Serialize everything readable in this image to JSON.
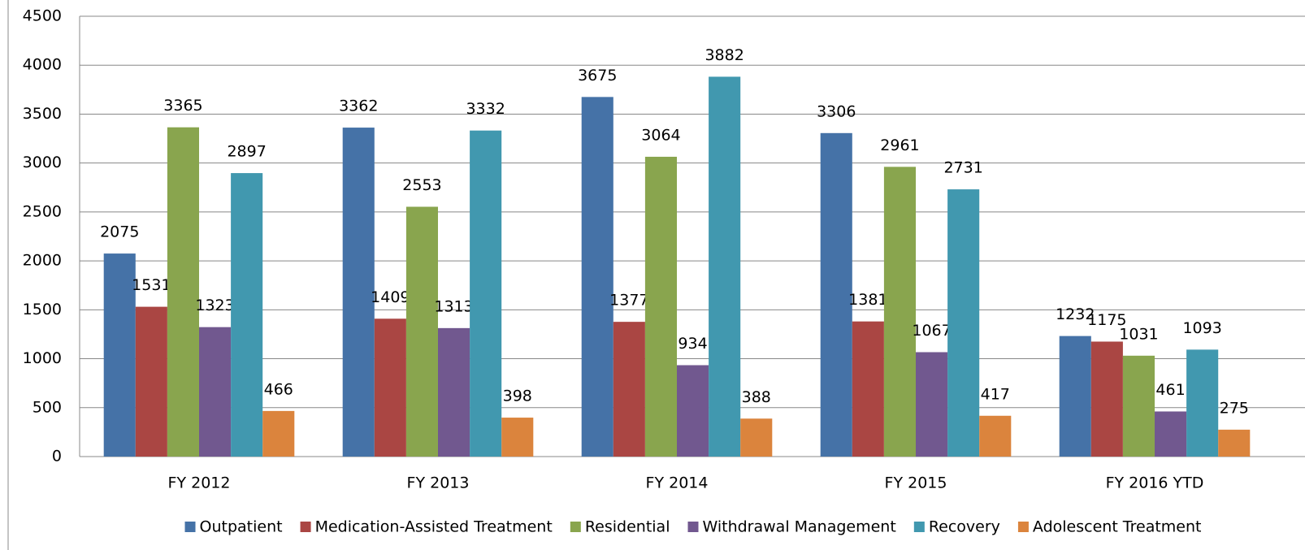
{
  "chart_data": {
    "type": "bar",
    "categories": [
      "FY 2012",
      "FY 2013",
      "FY 2014",
      "FY 2015",
      "FY 2016 YTD"
    ],
    "series": [
      {
        "name": "Outpatient",
        "color": "#4572a7",
        "values": [
          2075,
          3362,
          3675,
          3306,
          1232
        ]
      },
      {
        "name": "Medication-Assisted Treatment",
        "color": "#aa4643",
        "values": [
          1531,
          1409,
          1377,
          1381,
          1175
        ]
      },
      {
        "name": "Residential",
        "color": "#89a54e",
        "values": [
          3365,
          2553,
          3064,
          2961,
          1031
        ]
      },
      {
        "name": "Withdrawal Management",
        "color": "#71588f",
        "values": [
          1323,
          1313,
          934,
          1067,
          461
        ]
      },
      {
        "name": "Recovery",
        "color": "#4198af",
        "values": [
          2897,
          3332,
          3882,
          2731,
          1093
        ]
      },
      {
        "name": "Adolescent Treatment",
        "color": "#db843d",
        "values": [
          466,
          398,
          388,
          417,
          275
        ]
      }
    ],
    "ylim": [
      0,
      4500
    ],
    "yticks": [
      0,
      500,
      1000,
      1500,
      2000,
      2500,
      3000,
      3500,
      4000,
      4500
    ],
    "grid": true,
    "legend": "bottom"
  }
}
